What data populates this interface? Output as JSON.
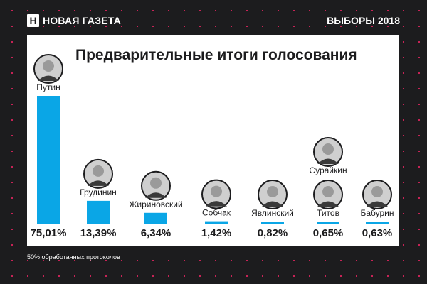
{
  "header": {
    "logo_mark": "Н",
    "logo_text": "НОВАЯ ГАЗЕТА",
    "section": "ВЫБОРЫ 2018"
  },
  "colors": {
    "background": "#1c1c1e",
    "dots": "#e0245e",
    "bar": "#0aa6e6",
    "card": "#ffffff"
  },
  "chart_data": {
    "type": "bar",
    "title": "Предварительные итоги голосования",
    "categories": [
      "Путин",
      "Грудинин",
      "Жириновский",
      "Собчак",
      "Явлинский",
      "Титов",
      "Бабурин"
    ],
    "extra_label": "Сурайкин",
    "values": [
      75.01,
      13.39,
      6.34,
      1.42,
      0.82,
      0.65,
      0.63
    ],
    "value_labels": [
      "75,01%",
      "13,39%",
      "6,34%",
      "1,42%",
      "0,82%",
      "0,65%",
      "0,63%"
    ],
    "ylim": [
      0,
      75.01
    ],
    "grid": false,
    "legend": "none"
  },
  "footnote": "50% обработанных протоколов"
}
